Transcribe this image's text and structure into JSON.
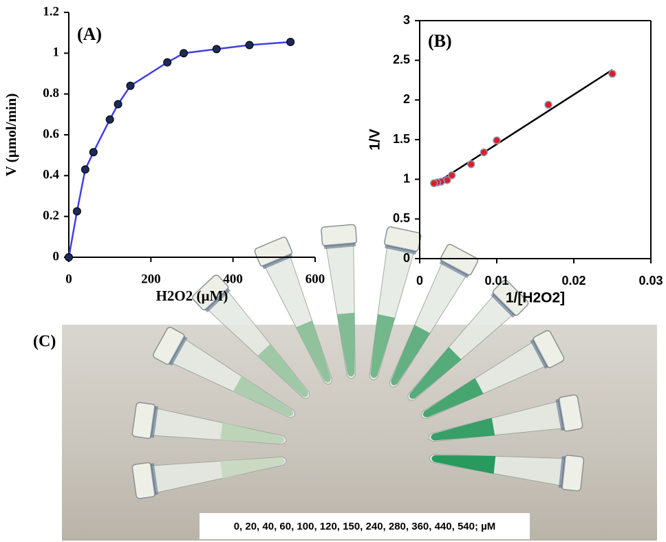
{
  "chart_data": [
    {
      "type": "line",
      "annotation": "(A)",
      "x_label": "H2O2 (µM)",
      "y_label": "V (µmol/min)",
      "x": [
        0,
        20,
        40,
        60,
        100,
        120,
        150,
        240,
        280,
        360,
        440,
        540
      ],
      "series": [
        {
          "color": "#3f3fe6",
          "marker_color": "#1b2a57",
          "values": [
            0,
            0.225,
            0.43,
            0.515,
            0.675,
            0.75,
            0.84,
            0.955,
            1.0,
            1.02,
            1.04,
            1.055
          ]
        }
      ],
      "xlim": [
        0,
        600
      ],
      "xticks": [
        0,
        200,
        400,
        600
      ],
      "ylim": [
        0,
        1.2
      ],
      "yticks": [
        0,
        0.2,
        0.4,
        0.6,
        0.8,
        1,
        1.2
      ]
    },
    {
      "type": "scatter",
      "annotation": "(B)",
      "x_label": "1/[H2O2]",
      "y_label": "1/V",
      "x": [
        0.025,
        0.0167,
        0.01,
        0.00833,
        0.00667,
        0.00417,
        0.00357,
        0.00278,
        0.00227,
        0.00185
      ],
      "series": [
        {
          "color": "#e01e1e",
          "values": [
            2.33,
            1.94,
            1.49,
            1.34,
            1.19,
            1.05,
            0.99,
            0.97,
            0.96,
            0.95
          ]
        }
      ],
      "trendline": {
        "color": "#000000",
        "x": [
          0.0018,
          0.025
        ],
        "y": [
          0.93,
          2.38
        ]
      },
      "frame": true,
      "xlim": [
        0,
        0.03
      ],
      "xticks": [
        0,
        0.01,
        0.02,
        0.03
      ],
      "ylim": [
        0,
        3
      ],
      "yticks": [
        0,
        0.5,
        1,
        1.5,
        2,
        2.5,
        3
      ]
    }
  ],
  "photo": {
    "label": "(C)",
    "caption": "0, 20, 40, 60, 100, 120, 150, 240, 280, 360, 440, 540; µM"
  }
}
